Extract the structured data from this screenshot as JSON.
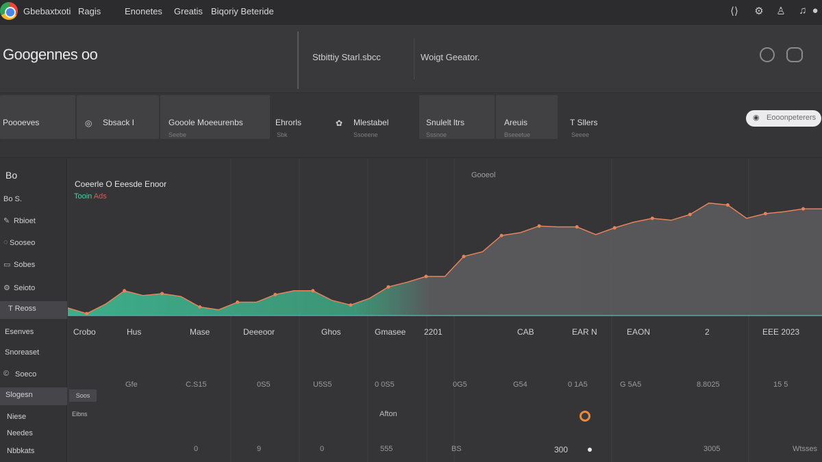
{
  "topbar": {
    "menu": [
      "Gbebaxtxoti",
      "Ragis",
      "Enonetes",
      "Greatis",
      "Biqoriy Beteride"
    ]
  },
  "header": {
    "title": "Googennes oo",
    "text_left": "Stbittiy Starl.sbcc",
    "text_right": "Woigt Geeator."
  },
  "tabs": [
    {
      "label": "Poooeves",
      "sub": ""
    },
    {
      "label": "Sbsack I",
      "sub": ""
    },
    {
      "label": "Gooole Moeeurenbs",
      "sub": "Seebe"
    },
    {
      "label": "Ehrorls",
      "sub": "Sbk"
    },
    {
      "label": "Mlestabel",
      "sub": "Ssoeene"
    },
    {
      "label": "Snulelt ltrs",
      "sub": "Sssnoe"
    },
    {
      "label": "Areuis",
      "sub": "Bseeetue"
    },
    {
      "label": "T Sllers",
      "sub": "Seeee"
    }
  ],
  "pill": {
    "label": "Eooonpeterers"
  },
  "sidebar": {
    "title": "Bo",
    "items": [
      "Bo S.",
      "Rbioet",
      "Sooseo",
      "Sobes",
      "Seioto",
      "T Reoss",
      "Esenves",
      "Snoreaset",
      "Soeco",
      "Slogesn",
      "Niese",
      "Needes",
      "Nbbkats"
    ]
  },
  "chart_panel": {
    "title": "Coeerle O Eeesde Enoor",
    "subtitle": "Tooin",
    "subtitle_red": "Ads",
    "caption": "Gooeol",
    "small_button": "Soos",
    "small_button2": "Eibns",
    "center_label": "Afton",
    "bottom_label": "300"
  },
  "chart_data": {
    "type": "area",
    "x": [
      0,
      1,
      2,
      3,
      4,
      5,
      6,
      7,
      8,
      9,
      10,
      11,
      12,
      13,
      14,
      15,
      16,
      17,
      18,
      19,
      20,
      21,
      22,
      23,
      24,
      25,
      26,
      27,
      28,
      29,
      30,
      31,
      32,
      33,
      34,
      35,
      36,
      37,
      38,
      39,
      40
    ],
    "y": [
      8,
      2,
      12,
      26,
      21,
      23,
      20,
      9,
      6,
      14,
      14,
      22,
      26,
      26,
      16,
      11,
      18,
      30,
      35,
      41,
      41,
      62,
      67,
      84,
      87,
      94,
      93,
      93,
      85,
      92,
      98,
      102,
      100,
      106,
      118,
      116,
      102,
      107,
      109,
      112,
      112
    ],
    "ylim": [
      0,
      125
    ]
  },
  "categories": [
    "Crobo",
    "Hus",
    "Mase",
    "Deeeoor",
    "Ghos",
    "Gmasee",
    "2201",
    "CAB",
    "EAR N",
    "EAON",
    "2",
    "EEE 2023"
  ],
  "row1_values": [
    "Gfe",
    "C.S15",
    "0S5",
    "U5S5",
    "0 0S5",
    "0G5",
    "G54",
    "0 1A5",
    "G 5A5",
    "8.8025",
    "15 5"
  ],
  "row3_values": [
    "0",
    "9",
    "0",
    "555",
    "BS",
    "3005",
    "Wtsses"
  ],
  "colors": {
    "accent": "#3fc398",
    "line": "#e9825a",
    "background": "#353537"
  }
}
